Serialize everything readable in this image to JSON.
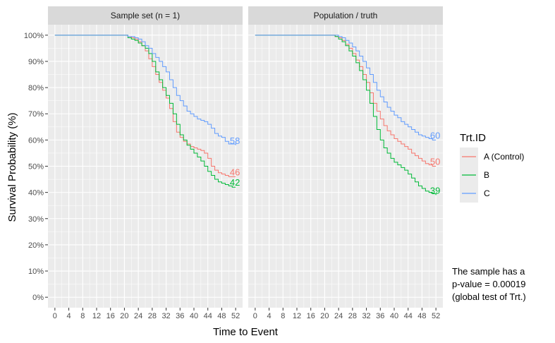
{
  "chart_data": {
    "type": "line",
    "title": "",
    "xlabel": "Time to Event",
    "ylabel": "Survival Probability (%)",
    "xlim": [
      -2,
      54
    ],
    "ylim": [
      -4,
      104
    ],
    "x_ticks": [
      0,
      4,
      8,
      12,
      16,
      20,
      24,
      28,
      32,
      36,
      40,
      44,
      48,
      52
    ],
    "y_ticks": [
      0,
      10,
      20,
      30,
      40,
      50,
      60,
      70,
      80,
      90,
      100
    ],
    "y_tick_labels": [
      "0%",
      "10%",
      "20%",
      "30%",
      "40%",
      "50%",
      "60%",
      "70%",
      "80%",
      "90%",
      "100%"
    ],
    "legend": {
      "title": "Trt.ID",
      "placement": "right",
      "entries": [
        "A (Control)",
        "B",
        "C"
      ]
    },
    "colors": {
      "A (Control)": "#F8766D",
      "B": "#00BA38",
      "C": "#619CFF"
    },
    "panels": [
      {
        "strip": "Sample set (n = 1)",
        "series": [
          {
            "name": "A (Control)",
            "end_label": "46",
            "points": [
              [
                0,
                100
              ],
              [
                20,
                100
              ],
              [
                21,
                99.5
              ],
              [
                22,
                99
              ],
              [
                23,
                98.5
              ],
              [
                24,
                97.5
              ],
              [
                25,
                96
              ],
              [
                26,
                94
              ],
              [
                27,
                91
              ],
              [
                28,
                88
              ],
              [
                29,
                85
              ],
              [
                30,
                82
              ],
              [
                31,
                79
              ],
              [
                32,
                76
              ],
              [
                33,
                72
              ],
              [
                34,
                67
              ],
              [
                35,
                63
              ],
              [
                36,
                61
              ],
              [
                37,
                59.5
              ],
              [
                38,
                58.5
              ],
              [
                39,
                57.5
              ],
              [
                40,
                57
              ],
              [
                41,
                56.5
              ],
              [
                42,
                56
              ],
              [
                43,
                55
              ],
              [
                44,
                53
              ],
              [
                45,
                50
              ],
              [
                46,
                48.5
              ],
              [
                47,
                47.5
              ],
              [
                48,
                47
              ],
              [
                49,
                46.5
              ],
              [
                50,
                46
              ],
              [
                51,
                46
              ],
              [
                52,
                46
              ]
            ]
          },
          {
            "name": "B",
            "end_label": "42",
            "points": [
              [
                0,
                100
              ],
              [
                20,
                100
              ],
              [
                21,
                99
              ],
              [
                22,
                98.5
              ],
              [
                23,
                98
              ],
              [
                24,
                97
              ],
              [
                25,
                96
              ],
              [
                26,
                95
              ],
              [
                27,
                93
              ],
              [
                28,
                90
              ],
              [
                29,
                86
              ],
              [
                30,
                83
              ],
              [
                31,
                80
              ],
              [
                32,
                77
              ],
              [
                33,
                74
              ],
              [
                34,
                70
              ],
              [
                35,
                66
              ],
              [
                36,
                62
              ],
              [
                37,
                60
              ],
              [
                38,
                58
              ],
              [
                39,
                56.5
              ],
              [
                40,
                55
              ],
              [
                41,
                53.5
              ],
              [
                42,
                52
              ],
              [
                43,
                50
              ],
              [
                44,
                48
              ],
              [
                45,
                46.5
              ],
              [
                46,
                45
              ],
              [
                47,
                44
              ],
              [
                48,
                43.5
              ],
              [
                49,
                43
              ],
              [
                50,
                42.5
              ],
              [
                51,
                42
              ],
              [
                52,
                42
              ]
            ]
          },
          {
            "name": "C",
            "end_label": "58",
            "points": [
              [
                0,
                100
              ],
              [
                20,
                100
              ],
              [
                21,
                99.5
              ],
              [
                22,
                99.5
              ],
              [
                23,
                99
              ],
              [
                24,
                98.5
              ],
              [
                25,
                97.5
              ],
              [
                26,
                96
              ],
              [
                27,
                95
              ],
              [
                28,
                93
              ],
              [
                29,
                91.5
              ],
              [
                30,
                90
              ],
              [
                31,
                88
              ],
              [
                32,
                86
              ],
              [
                33,
                83
              ],
              [
                34,
                80
              ],
              [
                35,
                77
              ],
              [
                36,
                75
              ],
              [
                37,
                73
              ],
              [
                38,
                71
              ],
              [
                39,
                70
              ],
              [
                40,
                69
              ],
              [
                41,
                68
              ],
              [
                42,
                67.5
              ],
              [
                43,
                67
              ],
              [
                44,
                66
              ],
              [
                45,
                64.5
              ],
              [
                46,
                62.5
              ],
              [
                47,
                61.5
              ],
              [
                48,
                61
              ],
              [
                49,
                59.5
              ],
              [
                50,
                58.5
              ],
              [
                51,
                58.5
              ],
              [
                52,
                58
              ]
            ]
          }
        ]
      },
      {
        "strip": "Population / truth",
        "series": [
          {
            "name": "A (Control)",
            "end_label": "50",
            "points": [
              [
                0,
                100
              ],
              [
                22,
                100
              ],
              [
                23,
                99.5
              ],
              [
                24,
                99
              ],
              [
                25,
                98
              ],
              [
                26,
                96.5
              ],
              [
                27,
                95
              ],
              [
                28,
                93
              ],
              [
                29,
                90.5
              ],
              [
                30,
                88
              ],
              [
                31,
                85
              ],
              [
                32,
                82
              ],
              [
                33,
                78
              ],
              [
                34,
                74
              ],
              [
                35,
                71
              ],
              [
                36,
                68
              ],
              [
                37,
                65.5
              ],
              [
                38,
                63.5
              ],
              [
                39,
                62
              ],
              [
                40,
                60.5
              ],
              [
                41,
                59.5
              ],
              [
                42,
                58.5
              ],
              [
                43,
                57.5
              ],
              [
                44,
                56.5
              ],
              [
                45,
                55
              ],
              [
                46,
                54
              ],
              [
                47,
                53
              ],
              [
                48,
                52
              ],
              [
                49,
                51
              ],
              [
                50,
                50.5
              ],
              [
                51,
                50
              ],
              [
                52,
                50
              ]
            ]
          },
          {
            "name": "B",
            "end_label": "39",
            "points": [
              [
                0,
                100
              ],
              [
                22,
                100
              ],
              [
                23,
                99.5
              ],
              [
                24,
                98.5
              ],
              [
                25,
                97.5
              ],
              [
                26,
                96
              ],
              [
                27,
                94
              ],
              [
                28,
                92
              ],
              [
                29,
                89.5
              ],
              [
                30,
                86.5
              ],
              [
                31,
                83
              ],
              [
                32,
                79
              ],
              [
                33,
                74
              ],
              [
                34,
                69
              ],
              [
                35,
                64
              ],
              [
                36,
                60
              ],
              [
                37,
                57
              ],
              [
                38,
                55
              ],
              [
                39,
                53
              ],
              [
                40,
                51.5
              ],
              [
                41,
                50.5
              ],
              [
                42,
                49.5
              ],
              [
                43,
                48.5
              ],
              [
                44,
                47
              ],
              [
                45,
                45.5
              ],
              [
                46,
                44
              ],
              [
                47,
                42.5
              ],
              [
                48,
                41.5
              ],
              [
                49,
                40.5
              ],
              [
                50,
                40
              ],
              [
                51,
                39.5
              ],
              [
                52,
                39
              ]
            ]
          },
          {
            "name": "C",
            "end_label": "60",
            "points": [
              [
                0,
                100
              ],
              [
                22,
                100
              ],
              [
                23,
                100
              ],
              [
                24,
                99.5
              ],
              [
                25,
                99
              ],
              [
                26,
                98
              ],
              [
                27,
                97
              ],
              [
                28,
                95.5
              ],
              [
                29,
                94
              ],
              [
                30,
                92
              ],
              [
                31,
                90
              ],
              [
                32,
                87.5
              ],
              [
                33,
                85
              ],
              [
                34,
                82
              ],
              [
                35,
                79
              ],
              [
                36,
                76.5
              ],
              [
                37,
                74.5
              ],
              [
                38,
                72.5
              ],
              [
                39,
                71
              ],
              [
                40,
                69.5
              ],
              [
                41,
                68.5
              ],
              [
                42,
                67
              ],
              [
                43,
                66
              ],
              [
                44,
                65
              ],
              [
                45,
                64
              ],
              [
                46,
                63
              ],
              [
                47,
                62
              ],
              [
                48,
                61.5
              ],
              [
                49,
                61
              ],
              [
                50,
                60.5
              ],
              [
                51,
                60
              ],
              [
                52,
                60
              ]
            ]
          }
        ]
      }
    ]
  },
  "note": {
    "lines": [
      "The sample has a",
      "p-value = 0.00019",
      "(global test of Trt.)"
    ]
  }
}
